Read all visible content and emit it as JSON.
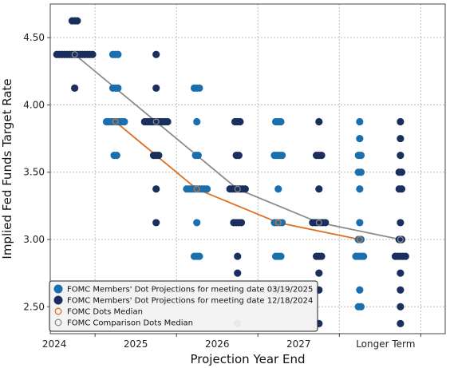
{
  "chart_data": {
    "type": "scatter",
    "xlabel": "Projection Year End",
    "ylabel": "Implied Fed Funds Target Rate",
    "categories": [
      "2024",
      "2025",
      "2026",
      "2027",
      "Longer Term"
    ],
    "ylim": [
      2.3,
      4.75
    ],
    "yticks": [
      2.5,
      3.0,
      3.5,
      4.0,
      4.5
    ],
    "grid": true,
    "legend_position": "bottom-left",
    "colors": {
      "current": "#1a6faf",
      "previous": "#1b2f5e",
      "median_current": "#e07020",
      "median_previous": "#8c8c8c"
    },
    "series": [
      {
        "name": "FOMC Members' Dot Projections for meeting date 03/19/2025",
        "points": [
          {
            "x": 2025.25,
            "y": 4.375,
            "n": 3
          },
          {
            "x": 2025.25,
            "y": 4.125,
            "n": 3
          },
          {
            "x": 2025.25,
            "y": 3.875,
            "n": 8
          },
          {
            "x": 2025.25,
            "y": 3.625,
            "n": 2
          },
          {
            "x": 2026.25,
            "y": 4.125,
            "n": 3
          },
          {
            "x": 2026.25,
            "y": 3.875,
            "n": 1
          },
          {
            "x": 2026.25,
            "y": 3.625,
            "n": 2
          },
          {
            "x": 2026.25,
            "y": 3.375,
            "n": 9
          },
          {
            "x": 2026.25,
            "y": 3.125,
            "n": 1
          },
          {
            "x": 2026.25,
            "y": 2.875,
            "n": 3
          },
          {
            "x": 2027.25,
            "y": 3.875,
            "n": 3
          },
          {
            "x": 2027.25,
            "y": 3.625,
            "n": 4
          },
          {
            "x": 2027.25,
            "y": 3.375,
            "n": 1
          },
          {
            "x": 2027.25,
            "y": 3.125,
            "n": 4
          },
          {
            "x": 2027.25,
            "y": 2.875,
            "n": 3
          },
          {
            "x": 2027.25,
            "y": 2.625,
            "n": 3
          },
          {
            "x": 2028.25,
            "y": 3.875,
            "n": 1
          },
          {
            "x": 2028.25,
            "y": 3.75,
            "n": 1
          },
          {
            "x": 2028.25,
            "y": 3.625,
            "n": 2
          },
          {
            "x": 2028.25,
            "y": 3.5,
            "n": 2
          },
          {
            "x": 2028.25,
            "y": 3.375,
            "n": 1
          },
          {
            "x": 2028.25,
            "y": 3.125,
            "n": 1
          },
          {
            "x": 2028.25,
            "y": 3.0,
            "n": 2
          },
          {
            "x": 2028.25,
            "y": 2.875,
            "n": 4
          },
          {
            "x": 2028.25,
            "y": 2.625,
            "n": 1
          },
          {
            "x": 2028.25,
            "y": 2.5,
            "n": 2
          }
        ]
      },
      {
        "name": "FOMC Members' Dot Projections for meeting date 12/18/2024",
        "points": [
          {
            "x": 2024.75,
            "y": 4.625,
            "n": 3
          },
          {
            "x": 2024.75,
            "y": 4.375,
            "n": 15
          },
          {
            "x": 2024.75,
            "y": 4.125,
            "n": 1
          },
          {
            "x": 2025.75,
            "y": 4.375,
            "n": 1
          },
          {
            "x": 2025.75,
            "y": 4.125,
            "n": 1
          },
          {
            "x": 2025.75,
            "y": 3.875,
            "n": 10
          },
          {
            "x": 2025.75,
            "y": 3.625,
            "n": 3
          },
          {
            "x": 2025.75,
            "y": 3.375,
            "n": 1
          },
          {
            "x": 2025.75,
            "y": 3.125,
            "n": 1
          },
          {
            "x": 2026.75,
            "y": 3.875,
            "n": 3
          },
          {
            "x": 2026.75,
            "y": 3.625,
            "n": 2
          },
          {
            "x": 2026.75,
            "y": 3.375,
            "n": 7
          },
          {
            "x": 2026.75,
            "y": 3.125,
            "n": 4
          },
          {
            "x": 2026.75,
            "y": 2.875,
            "n": 1
          },
          {
            "x": 2026.75,
            "y": 2.75,
            "n": 1
          },
          {
            "x": 2026.75,
            "y": 2.375,
            "n": 1
          },
          {
            "x": 2027.75,
            "y": 3.875,
            "n": 1
          },
          {
            "x": 2027.75,
            "y": 3.625,
            "n": 3
          },
          {
            "x": 2027.75,
            "y": 3.375,
            "n": 1
          },
          {
            "x": 2027.75,
            "y": 3.125,
            "n": 6
          },
          {
            "x": 2027.75,
            "y": 2.875,
            "n": 3
          },
          {
            "x": 2027.75,
            "y": 2.75,
            "n": 1
          },
          {
            "x": 2027.75,
            "y": 2.625,
            "n": 1
          },
          {
            "x": 2027.75,
            "y": 2.375,
            "n": 1
          },
          {
            "x": 2028.75,
            "y": 3.875,
            "n": 1
          },
          {
            "x": 2028.75,
            "y": 3.75,
            "n": 1
          },
          {
            "x": 2028.75,
            "y": 3.625,
            "n": 1
          },
          {
            "x": 2028.75,
            "y": 3.5,
            "n": 2
          },
          {
            "x": 2028.75,
            "y": 3.375,
            "n": 2
          },
          {
            "x": 2028.75,
            "y": 3.125,
            "n": 1
          },
          {
            "x": 2028.75,
            "y": 3.0,
            "n": 2
          },
          {
            "x": 2028.75,
            "y": 2.875,
            "n": 5
          },
          {
            "x": 2028.75,
            "y": 2.75,
            "n": 1
          },
          {
            "x": 2028.75,
            "y": 2.625,
            "n": 1
          },
          {
            "x": 2028.75,
            "y": 2.5,
            "n": 1
          },
          {
            "x": 2028.75,
            "y": 2.375,
            "n": 1
          }
        ]
      },
      {
        "name": "FOMC Dots Median",
        "points": [
          {
            "x": 2025.25,
            "y": 3.875
          },
          {
            "x": 2026.25,
            "y": 3.375
          },
          {
            "x": 2027.25,
            "y": 3.125
          },
          {
            "x": 2028.25,
            "y": 3.0
          }
        ]
      },
      {
        "name": "FOMC Comparison Dots Median",
        "points": [
          {
            "x": 2024.75,
            "y": 4.375
          },
          {
            "x": 2025.75,
            "y": 3.875
          },
          {
            "x": 2026.75,
            "y": 3.375
          },
          {
            "x": 2027.75,
            "y": 3.125
          },
          {
            "x": 2028.75,
            "y": 3.0
          }
        ]
      }
    ]
  }
}
